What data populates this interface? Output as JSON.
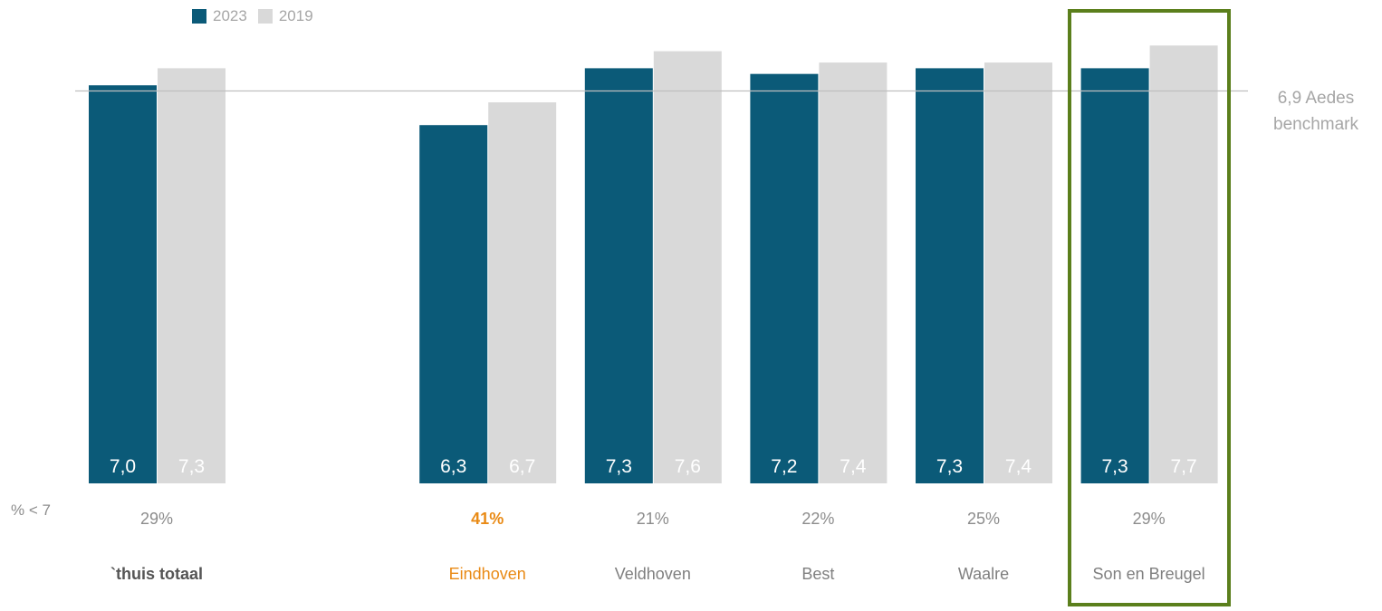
{
  "chart_data": {
    "type": "bar",
    "categories": [
      "`thuis totaal",
      "Eindhoven",
      "Veldhoven",
      "Best",
      "Waalre",
      "Son en Breugel"
    ],
    "category_slots": [
      0,
      2,
      3,
      4,
      5,
      6
    ],
    "series": [
      {
        "name": "2023",
        "color": "#0b5a78",
        "values": [
          7.0,
          6.3,
          7.3,
          7.2,
          7.3,
          7.3
        ],
        "labels": [
          "7,0",
          "6,3",
          "7,3",
          "7,2",
          "7,3",
          "7,3"
        ]
      },
      {
        "name": "2019",
        "color": "#d9d9d9",
        "values": [
          7.3,
          6.7,
          7.6,
          7.4,
          7.4,
          7.7
        ],
        "labels": [
          "7,3",
          "6,7",
          "7,6",
          "7,4",
          "7,4",
          "7,7"
        ]
      }
    ],
    "pct_below_7": [
      "29%",
      "41%",
      "21%",
      "22%",
      "25%",
      "29%"
    ],
    "pct_row_label": "% < 7",
    "highlighted_category": "Eindhoven",
    "highlight_color": "#e98a15",
    "boxed_category": "Son en Breugel",
    "benchmark": {
      "value": 6.9,
      "label_line1": "6,9 Aedes",
      "label_line2": "benchmark"
    },
    "ylim": [
      0,
      8.5
    ],
    "grid": false,
    "legend_position": "top-left"
  }
}
